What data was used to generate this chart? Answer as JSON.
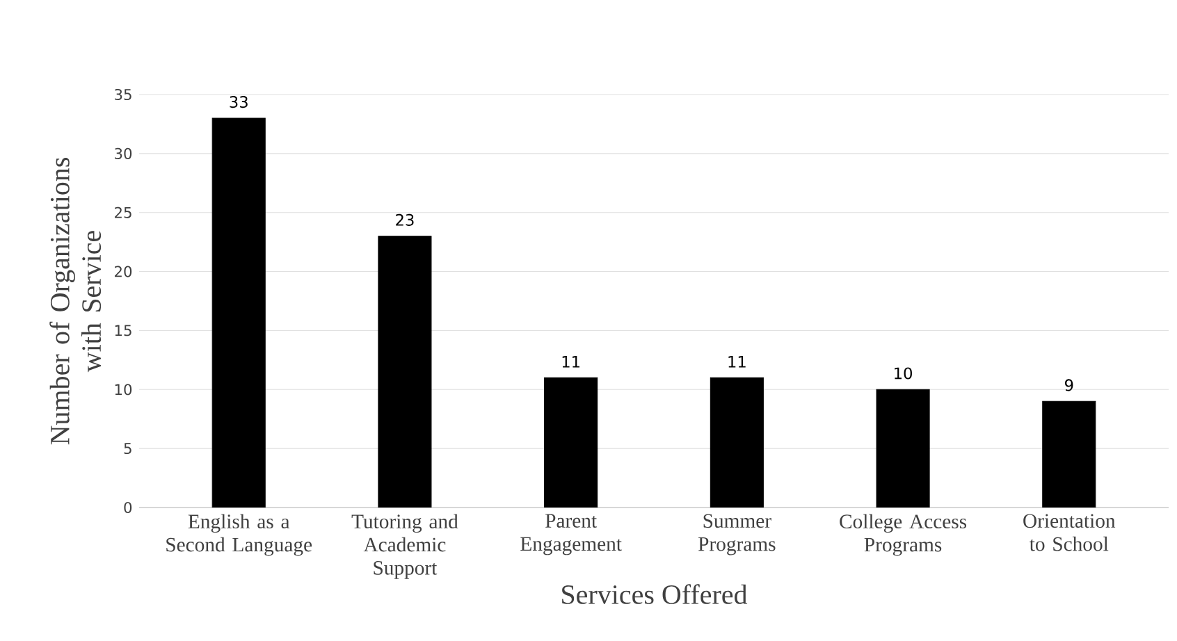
{
  "chart_data": {
    "type": "bar",
    "xlabel": "Services Offered",
    "ylabel": "Number of Organizations with Service",
    "categories": [
      "English as a Second Language",
      "Tutoring and Academic Support",
      "Parent Engagement",
      "Summer Programs",
      "College Access Programs",
      "Orientation to School"
    ],
    "values": [
      33,
      23,
      11,
      11,
      10,
      9
    ],
    "color": "#000000",
    "ylim": [
      0,
      35
    ],
    "yticks": [
      0,
      5,
      10,
      15,
      20,
      25,
      30,
      35
    ],
    "grid": "y",
    "data_labels": true
  }
}
